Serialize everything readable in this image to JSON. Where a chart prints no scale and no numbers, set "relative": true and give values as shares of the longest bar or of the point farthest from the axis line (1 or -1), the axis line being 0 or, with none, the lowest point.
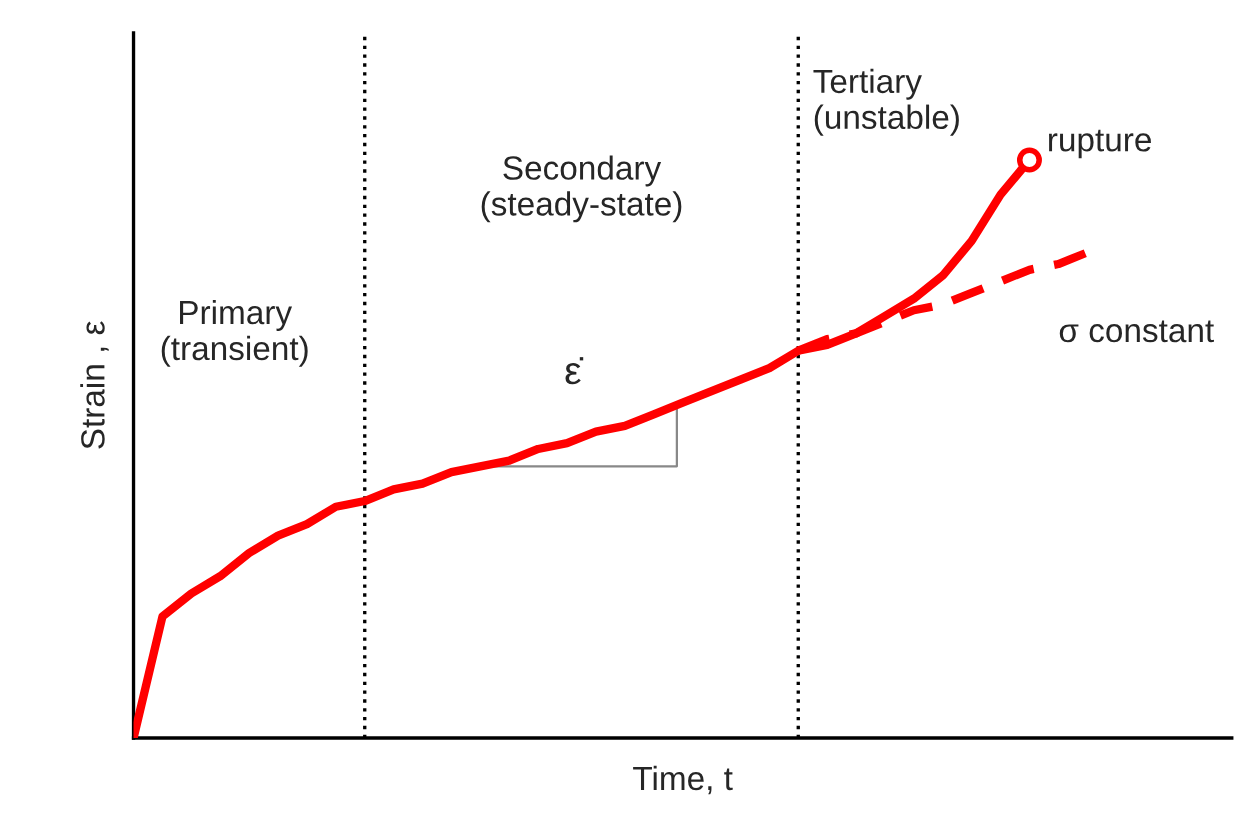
{
  "chart_data": {
    "type": "line",
    "relative": true,
    "xlabel": "Time, t",
    "ylabel": "Strain , ε",
    "categories": [
      null,
      null,
      null,
      null,
      null,
      null,
      null,
      null,
      null,
      null,
      null,
      null,
      null,
      null,
      null,
      null,
      null,
      null,
      null,
      null,
      null,
      null,
      null,
      null,
      null,
      null,
      null,
      null,
      null,
      null,
      null,
      null,
      null,
      null,
      null,
      null,
      null,
      null,
      null
    ],
    "series": [
      {
        "color": "#ff0000",
        "line_style": "solid",
        "values": [
          0,
          0.21,
          0.25,
          0.28,
          0.32,
          0.35,
          0.37,
          0.4,
          0.41,
          0.43,
          0.44,
          0.46,
          0.47,
          0.48,
          0.5,
          0.51,
          0.53,
          0.54,
          0.56,
          0.58,
          0.6,
          0.62,
          0.64,
          0.67,
          0.68,
          0.7,
          0.73,
          0.76,
          0.8,
          0.86,
          0.94,
          1.0,
          null,
          null,
          null,
          null,
          null,
          null,
          null
        ]
      },
      {
        "color": "#ff0000",
        "line_style": "dashed",
        "values": [
          null,
          null,
          null,
          null,
          null,
          null,
          null,
          null,
          null,
          null,
          null,
          null,
          null,
          null,
          null,
          null,
          null,
          null,
          null,
          null,
          null,
          null,
          null,
          0.67,
          0.69,
          0.7,
          0.72,
          0.74,
          0.75,
          0.77,
          0.79,
          0.81,
          0.82,
          0.84,
          null,
          null,
          null,
          null,
          null
        ]
      }
    ],
    "annotations": [
      "Primary\n(transient)",
      "Secondary\n(steady-state)",
      "Tertiary\n(unstable)",
      "ε̇",
      "rupture",
      "σ constant"
    ]
  }
}
